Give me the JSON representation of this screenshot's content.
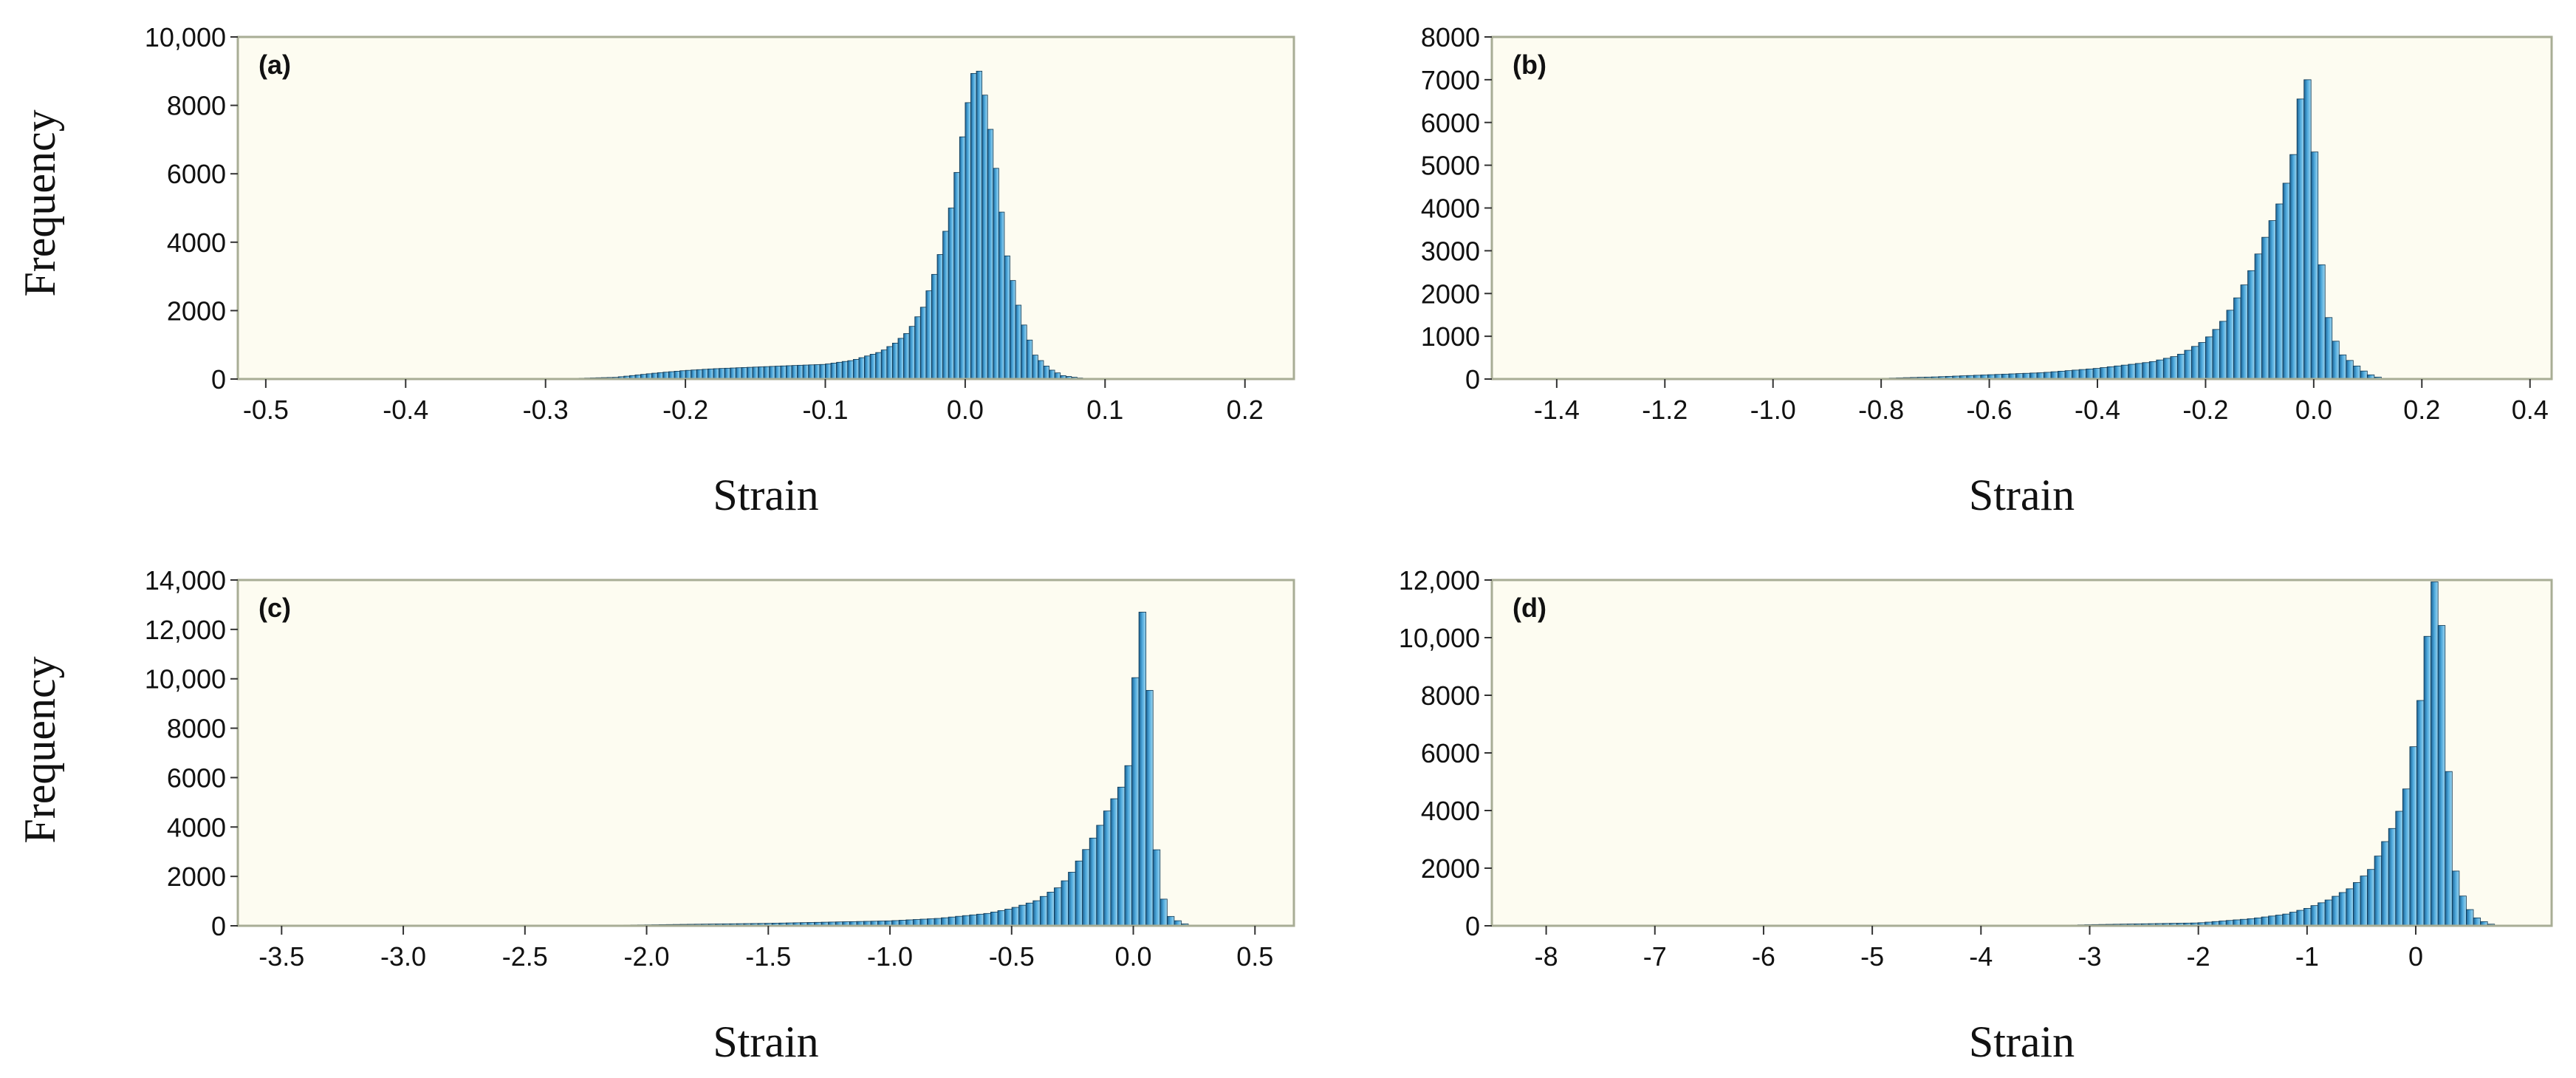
{
  "chart_data": [
    {
      "type": "bar",
      "panel_label": "(a)",
      "xlabel": "Strain",
      "ylabel": "Frequency",
      "xlim": [
        -0.52,
        0.235
      ],
      "ylim": [
        0,
        10000
      ],
      "xticks": [
        -0.5,
        -0.4,
        -0.3,
        -0.2,
        -0.1,
        0.0,
        0.1,
        0.2
      ],
      "xtick_labels": [
        "-0.5",
        "-0.4",
        "-0.3",
        "-0.2",
        "-0.1",
        "0.0",
        "0.1",
        "0.2"
      ],
      "yticks": [
        0,
        2000,
        4000,
        6000,
        8000,
        10000
      ],
      "ytick_labels": [
        "0",
        "2000",
        "4000",
        "6000",
        "8000",
        "10,000"
      ],
      "bin_width": 0.004,
      "bins": [
        [
          -0.3,
          0
        ],
        [
          -0.25,
          50
        ],
        [
          -0.22,
          180
        ],
        [
          -0.2,
          250
        ],
        [
          -0.18,
          300
        ],
        [
          -0.15,
          350
        ],
        [
          -0.12,
          400
        ],
        [
          -0.1,
          430
        ],
        [
          -0.08,
          550
        ],
        [
          -0.06,
          800
        ],
        [
          -0.05,
          1050
        ],
        [
          -0.04,
          1400
        ],
        [
          -0.03,
          2100
        ],
        [
          -0.02,
          3300
        ],
        [
          -0.01,
          5000
        ],
        [
          0.0,
          7600
        ],
        [
          0.005,
          8800
        ],
        [
          0.008,
          9200
        ],
        [
          0.012,
          8800
        ],
        [
          0.02,
          6800
        ],
        [
          0.03,
          3600
        ],
        [
          0.04,
          1800
        ],
        [
          0.05,
          700
        ],
        [
          0.06,
          300
        ],
        [
          0.07,
          100
        ],
        [
          0.08,
          40
        ],
        [
          0.09,
          0
        ]
      ],
      "grid": false
    },
    {
      "type": "bar",
      "panel_label": "(b)",
      "xlabel": "Strain",
      "ylabel": "",
      "xlim": [
        -1.52,
        0.44
      ],
      "ylim": [
        0,
        8000
      ],
      "xticks": [
        -1.4,
        -1.2,
        -1.0,
        -0.8,
        -0.6,
        -0.4,
        -0.2,
        0.0,
        0.2,
        0.4
      ],
      "xtick_labels": [
        "-1.4",
        "-1.2",
        "-1.0",
        "-0.8",
        "-0.6",
        "-0.4",
        "-0.2",
        "0.0",
        "0.2",
        "0.4"
      ],
      "yticks": [
        0,
        1000,
        2000,
        3000,
        4000,
        5000,
        6000,
        7000,
        8000
      ],
      "ytick_labels": [
        "0",
        "1000",
        "2000",
        "3000",
        "4000",
        "5000",
        "6000",
        "7000",
        "8000"
      ],
      "bin_width": 0.013,
      "bins": [
        [
          -0.85,
          0
        ],
        [
          -0.7,
          50
        ],
        [
          -0.6,
          100
        ],
        [
          -0.5,
          150
        ],
        [
          -0.4,
          250
        ],
        [
          -0.3,
          400
        ],
        [
          -0.25,
          550
        ],
        [
          -0.2,
          900
        ],
        [
          -0.17,
          1300
        ],
        [
          -0.15,
          1700
        ],
        [
          -0.12,
          2400
        ],
        [
          -0.1,
          3000
        ],
        [
          -0.08,
          3600
        ],
        [
          -0.06,
          4200
        ],
        [
          -0.04,
          5000
        ],
        [
          -0.03,
          6000
        ],
        [
          -0.02,
          7000
        ],
        [
          -0.005,
          7000
        ],
        [
          0.01,
          3100
        ],
        [
          0.03,
          1200
        ],
        [
          0.05,
          600
        ],
        [
          0.08,
          300
        ],
        [
          0.1,
          120
        ],
        [
          0.12,
          40
        ],
        [
          0.14,
          0
        ]
      ],
      "grid": false
    },
    {
      "type": "bar",
      "panel_label": "(c)",
      "xlabel": "Strain",
      "ylabel": "Frequency",
      "xlim": [
        -3.68,
        0.66
      ],
      "ylim": [
        0,
        14000
      ],
      "xticks": [
        -3.5,
        -3.0,
        -2.5,
        -2.0,
        -1.5,
        -1.0,
        -0.5,
        0.0,
        0.5
      ],
      "xtick_labels": [
        "-3.5",
        "-3.0",
        "-2.5",
        "-2.0",
        "-1.5",
        "-1.0",
        "-0.5",
        "0.0",
        "0.5"
      ],
      "yticks": [
        0,
        2000,
        4000,
        6000,
        8000,
        10000,
        12000,
        14000
      ],
      "ytick_labels": [
        "0",
        "2000",
        "4000",
        "6000",
        "8000",
        "10,000",
        "12,000",
        "14,000"
      ],
      "bin_width": 0.029,
      "bins": [
        [
          -2.5,
          0
        ],
        [
          -2.0,
          40
        ],
        [
          -1.5,
          100
        ],
        [
          -1.0,
          200
        ],
        [
          -0.8,
          300
        ],
        [
          -0.6,
          500
        ],
        [
          -0.5,
          700
        ],
        [
          -0.4,
          1000
        ],
        [
          -0.3,
          1600
        ],
        [
          -0.25,
          2200
        ],
        [
          -0.2,
          3000
        ],
        [
          -0.15,
          3800
        ],
        [
          -0.1,
          4800
        ],
        [
          -0.05,
          5600
        ],
        [
          -0.02,
          6500
        ],
        [
          0.0,
          8800
        ],
        [
          0.03,
          13200
        ],
        [
          0.06,
          11200
        ],
        [
          0.09,
          3500
        ],
        [
          0.12,
          1200
        ],
        [
          0.15,
          400
        ],
        [
          0.2,
          100
        ],
        [
          0.25,
          0
        ]
      ],
      "grid": false
    },
    {
      "type": "bar",
      "panel_label": "(d)",
      "xlabel": "Strain",
      "ylabel": "",
      "xlim": [
        -8.5,
        1.25
      ],
      "ylim": [
        0,
        12000
      ],
      "xticks": [
        -8,
        -7,
        -6,
        -5,
        -4,
        -3,
        -2,
        -1,
        0
      ],
      "xtick_labels": [
        "-8",
        "-7",
        "-6",
        "-5",
        "-4",
        "-3",
        "-2",
        "-1",
        "0"
      ],
      "yticks": [
        0,
        2000,
        4000,
        6000,
        8000,
        10000,
        12000
      ],
      "ytick_labels": [
        "0",
        "2000",
        "4000",
        "6000",
        "8000",
        "10,000",
        "12,000"
      ],
      "bin_width": 0.065,
      "bins": [
        [
          -3.5,
          0
        ],
        [
          -3.0,
          40
        ],
        [
          -2.0,
          100
        ],
        [
          -1.5,
          250
        ],
        [
          -1.2,
          400
        ],
        [
          -1.0,
          600
        ],
        [
          -0.8,
          900
        ],
        [
          -0.6,
          1300
        ],
        [
          -0.4,
          2000
        ],
        [
          -0.3,
          2800
        ],
        [
          -0.2,
          3500
        ],
        [
          -0.1,
          4500
        ],
        [
          -0.05,
          5500
        ],
        [
          0.0,
          6800
        ],
        [
          0.05,
          8000
        ],
        [
          0.1,
          9700
        ],
        [
          0.15,
          12000
        ],
        [
          0.22,
          11800
        ],
        [
          0.3,
          5500
        ],
        [
          0.36,
          2000
        ],
        [
          0.45,
          800
        ],
        [
          0.55,
          300
        ],
        [
          0.65,
          100
        ],
        [
          0.75,
          0
        ]
      ],
      "grid": false
    }
  ],
  "colors": {
    "plot_background": "#fdfcf1",
    "frame": "#a8ad95",
    "bar_fill_light": "#8ed0ef",
    "bar_fill": "#3a98cf",
    "bar_fill_dark": "#1b5f8f",
    "bar_edge": "#0d3550",
    "text": "#111111"
  }
}
